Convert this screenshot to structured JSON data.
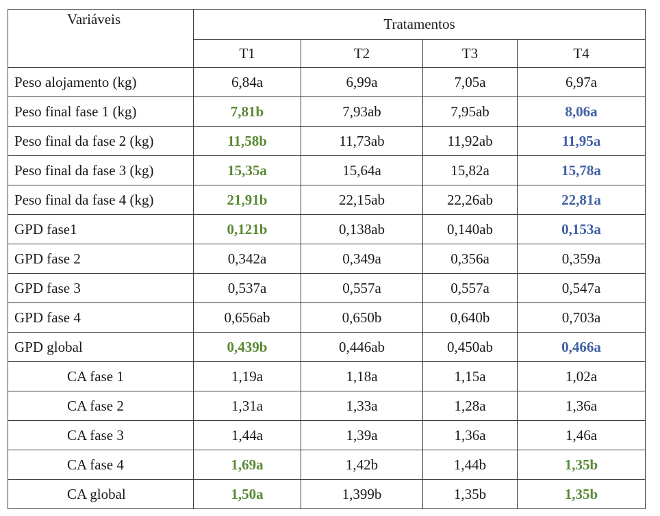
{
  "header": {
    "variables_label": "Variáveis",
    "treatments_label": "Tratamentos",
    "treatments": [
      "T1",
      "T2",
      "T3",
      "T4"
    ]
  },
  "colors": {
    "green_highlight": "#5a8a35",
    "blue_highlight": "#3f61a6"
  },
  "rows": [
    {
      "label": "Peso alojamento (kg)",
      "indent": false,
      "values": [
        "6,84a",
        "6,99a",
        "7,05a",
        "6,97a"
      ],
      "styles": [
        "",
        "",
        "",
        ""
      ]
    },
    {
      "label": "Peso final fase 1 (kg)",
      "indent": false,
      "values": [
        "7,81b",
        "7,93ab",
        "7,95ab",
        "8,06a"
      ],
      "styles": [
        "green",
        "",
        "",
        "blue"
      ]
    },
    {
      "label": "Peso final da fase 2 (kg)",
      "indent": false,
      "values": [
        "11,58b",
        "11,73ab",
        "11,92ab",
        "11,95a"
      ],
      "styles": [
        "green",
        "",
        "",
        "blue"
      ]
    },
    {
      "label": "Peso final da fase 3 (kg)",
      "indent": false,
      "values": [
        "15,35a",
        "15,64a",
        "15,82a",
        "15,78a"
      ],
      "styles": [
        "green",
        "",
        "",
        "blue"
      ]
    },
    {
      "label": "Peso final da fase 4 (kg)",
      "indent": false,
      "values": [
        "21,91b",
        "22,15ab",
        "22,26ab",
        "22,81a"
      ],
      "styles": [
        "green",
        "",
        "",
        "blue"
      ]
    },
    {
      "label": "GPD fase1",
      "indent": false,
      "values": [
        "0,121b",
        "0,138ab",
        "0,140ab",
        "0,153a"
      ],
      "styles": [
        "green",
        "",
        "",
        "blue"
      ]
    },
    {
      "label": "GPD fase 2",
      "indent": false,
      "values": [
        "0,342a",
        "0,349a",
        "0,356a",
        "0,359a"
      ],
      "styles": [
        "",
        "",
        "",
        ""
      ]
    },
    {
      "label": "GPD fase 3",
      "indent": false,
      "values": [
        "0,537a",
        "0,557a",
        "0,557a",
        "0,547a"
      ],
      "styles": [
        "",
        "",
        "",
        ""
      ]
    },
    {
      "label": "GPD fase 4",
      "indent": false,
      "values": [
        "0,656ab",
        "0,650b",
        "0,640b",
        "0,703a"
      ],
      "styles": [
        "",
        "",
        "",
        ""
      ]
    },
    {
      "label": "GPD global",
      "indent": false,
      "values": [
        "0,439b",
        "0,446ab",
        "0,450ab",
        "0,466a"
      ],
      "styles": [
        "green",
        "",
        "",
        "blue"
      ]
    },
    {
      "label": "CA fase 1",
      "indent": true,
      "values": [
        "1,19a",
        "1,18a",
        "1,15a",
        "1,02a"
      ],
      "styles": [
        "",
        "",
        "",
        ""
      ]
    },
    {
      "label": "CA fase 2",
      "indent": true,
      "values": [
        "1,31a",
        "1,33a",
        "1,28a",
        "1,36a"
      ],
      "styles": [
        "",
        "",
        "",
        ""
      ]
    },
    {
      "label": "CA fase 3",
      "indent": true,
      "values": [
        "1,44a",
        "1,39a",
        "1,36a",
        "1,46a"
      ],
      "styles": [
        "",
        "",
        "",
        ""
      ]
    },
    {
      "label": "CA fase 4",
      "indent": true,
      "values": [
        "1,69a",
        "1,42b",
        "1,44b",
        "1,35b"
      ],
      "styles": [
        "green",
        "",
        "",
        "green"
      ]
    },
    {
      "label": "CA global",
      "indent": true,
      "values": [
        "1,50a",
        "1,399b",
        "1,35b",
        "1,35b"
      ],
      "styles": [
        "green",
        "",
        "",
        "green"
      ]
    }
  ]
}
